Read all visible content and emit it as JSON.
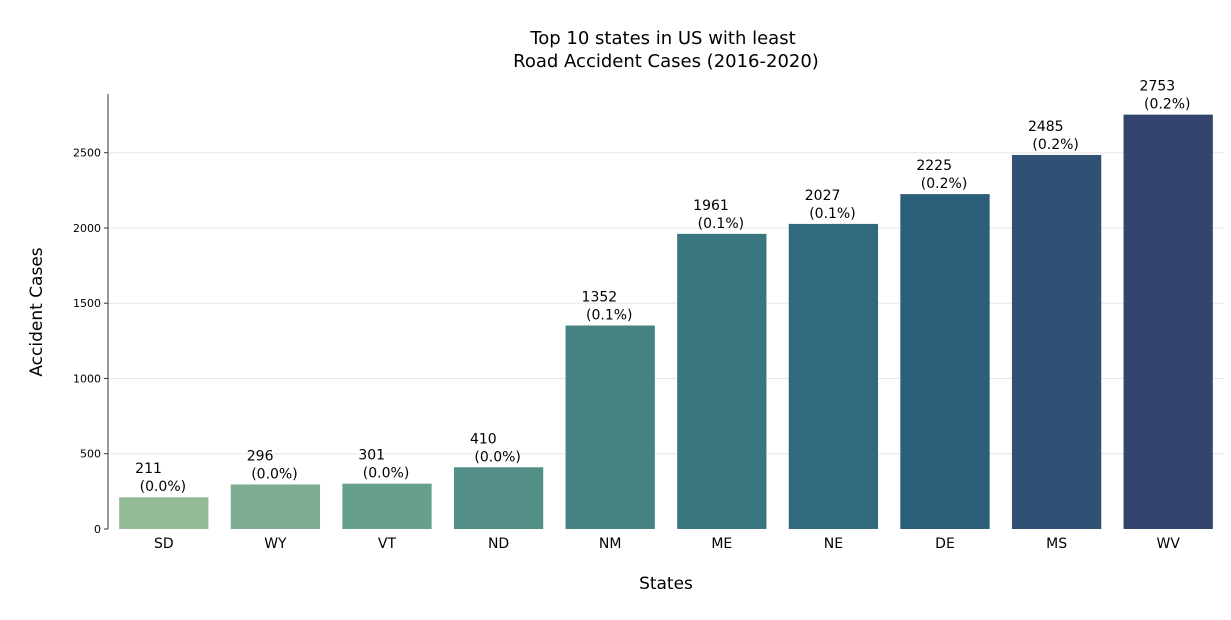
{
  "chart_data": {
    "type": "bar",
    "title_lines": [
      "Top 10 states in US with least",
      "Road Accident Cases (2016-2020)"
    ],
    "xlabel": "States",
    "ylabel": "Accident Cases",
    "categories": [
      "SD",
      "WY",
      "VT",
      "ND",
      "NM",
      "ME",
      "NE",
      "DE",
      "MS",
      "WV"
    ],
    "values": [
      211,
      296,
      301,
      410,
      1352,
      1961,
      2027,
      2225,
      2485,
      2753
    ],
    "percent_labels": [
      "(0.0%)",
      "(0.0%)",
      "(0.0%)",
      "(0.0%)",
      "(0.1%)",
      "(0.1%)",
      "(0.1%)",
      "(0.2%)",
      "(0.2%)",
      "(0.2%)"
    ],
    "colors": [
      "#93bb98",
      "#7cab91",
      "#669f8c",
      "#548f87",
      "#468282",
      "#3a767f",
      "#306a7c",
      "#2b5e78",
      "#2e5174",
      "#33446d"
    ],
    "yticks": [
      0,
      500,
      1000,
      1500,
      2000,
      2500
    ],
    "ylim": [
      0,
      2890
    ],
    "grid": true
  }
}
